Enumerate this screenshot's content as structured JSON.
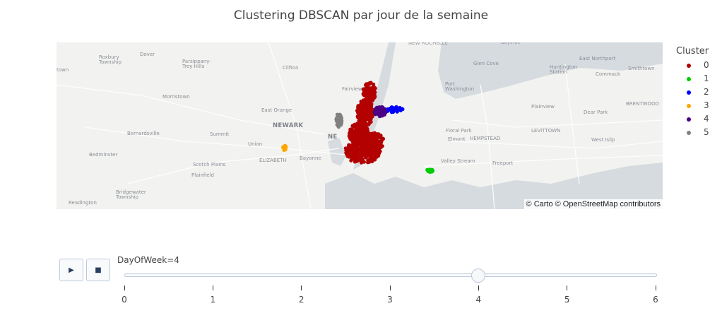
{
  "title": "Clustering DBSCAN par jour de la semaine",
  "map": {
    "attribution": "© Carto © OpenStreetMap contributors",
    "places": [
      {
        "name": "town",
        "kind": "small"
      },
      {
        "name": "Roxbury\nTownship",
        "kind": "small"
      },
      {
        "name": "Dover",
        "kind": "small"
      },
      {
        "name": "Parsippany-\nTroy Hills",
        "kind": "small"
      },
      {
        "name": "Clifton",
        "kind": "small"
      },
      {
        "name": "NEW ROCHELLE",
        "kind": "small"
      },
      {
        "name": "Bayville",
        "kind": "small"
      },
      {
        "name": "Glen Cove",
        "kind": "small"
      },
      {
        "name": "Huntington\nStation",
        "kind": "small"
      },
      {
        "name": "East Northport",
        "kind": "small"
      },
      {
        "name": "Commack",
        "kind": "small"
      },
      {
        "name": "Smithtown",
        "kind": "small"
      },
      {
        "name": "Fairview",
        "kind": "small"
      },
      {
        "name": "Port\nWashington",
        "kind": "small"
      },
      {
        "name": "Morristown",
        "kind": "small"
      },
      {
        "name": "East Orange",
        "kind": "small"
      },
      {
        "name": "NEWARK",
        "kind": "big"
      },
      {
        "name": "NE",
        "kind": "big"
      },
      {
        "name": "Plainview",
        "kind": "small"
      },
      {
        "name": "Dear Park",
        "kind": "small"
      },
      {
        "name": "BRENTWOOD",
        "kind": "small"
      },
      {
        "name": "Bernardsville",
        "kind": "small"
      },
      {
        "name": "Summit",
        "kind": "small"
      },
      {
        "name": "Floral Park",
        "kind": "small"
      },
      {
        "name": "Elmont",
        "kind": "small"
      },
      {
        "name": "HEMPSTEAD",
        "kind": "small"
      },
      {
        "name": "LEVITTOWN",
        "kind": "small"
      },
      {
        "name": "West Islip",
        "kind": "small"
      },
      {
        "name": "Union",
        "kind": "small"
      },
      {
        "name": "Bedminster",
        "kind": "small"
      },
      {
        "name": "ELIZABETH",
        "kind": "small"
      },
      {
        "name": "Bayonne",
        "kind": "small"
      },
      {
        "name": "Scotch Plains",
        "kind": "small"
      },
      {
        "name": "Plainfield",
        "kind": "small"
      },
      {
        "name": "Valley Stream",
        "kind": "small"
      },
      {
        "name": "Freeport",
        "kind": "small"
      },
      {
        "name": "Bridgewater\nTownship",
        "kind": "small"
      },
      {
        "name": "Readington",
        "kind": "small"
      }
    ]
  },
  "legend": {
    "title": "Cluster",
    "items": [
      {
        "label": "0",
        "color": "#b30000"
      },
      {
        "label": "1",
        "color": "#00cc00"
      },
      {
        "label": "2",
        "color": "#0000ff"
      },
      {
        "label": "3",
        "color": "#ffa500"
      },
      {
        "label": "4",
        "color": "#4b0082"
      },
      {
        "label": "5",
        "color": "#808080"
      }
    ]
  },
  "controls": {
    "play_icon": "play-icon",
    "stop_icon": "stop-icon",
    "play_symbol": "▶",
    "stop_symbol": "■"
  },
  "slider": {
    "label": "DayOfWeek=4",
    "current": 4,
    "min": 0,
    "max": 6,
    "ticks": [
      "0",
      "1",
      "2",
      "3",
      "4",
      "5",
      "6"
    ]
  }
}
